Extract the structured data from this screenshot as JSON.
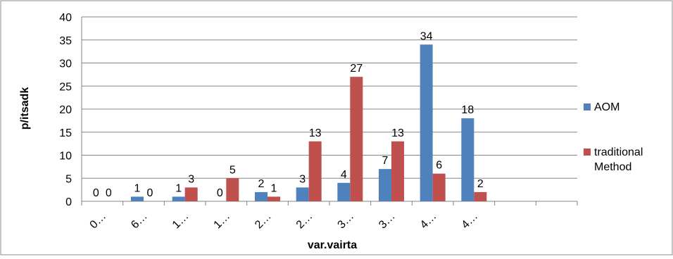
{
  "chart_data": {
    "type": "bar",
    "title": "",
    "xlabel": "var.vairta",
    "ylabel": "p/itsadk",
    "ylim": [
      0,
      40
    ],
    "y_ticks": [
      "0",
      "5",
      "10",
      "15",
      "20",
      "25",
      "30",
      "35",
      "40"
    ],
    "categories": [
      "0…",
      "6…",
      "1…",
      "1…",
      "2…",
      "2…",
      "3…",
      "3…",
      "4…",
      "4…",
      "",
      ""
    ],
    "legend_position": "right",
    "grid": true,
    "series": [
      {
        "name": "AOM",
        "color": "#4f81bd",
        "values": [
          0,
          1,
          1,
          0,
          2,
          3,
          4,
          7,
          34,
          18,
          null,
          null
        ],
        "labels": [
          "0",
          "1",
          "1",
          "0",
          "2",
          "3",
          "4",
          "7",
          "34",
          "18",
          "",
          ""
        ]
      },
      {
        "name": "traditional Method",
        "color": "#c0504d",
        "values": [
          0,
          0,
          3,
          5,
          1,
          13,
          27,
          13,
          6,
          2,
          null,
          null
        ],
        "labels": [
          "0",
          "0",
          "3",
          "5",
          "1",
          "13",
          "27",
          "13",
          "6",
          "2",
          "",
          ""
        ]
      }
    ]
  },
  "legend": {
    "items": [
      {
        "label_lines": [
          "AOM"
        ],
        "color": "#4f81bd"
      },
      {
        "label_lines": [
          "traditional",
          "Method"
        ],
        "color": "#c0504d"
      }
    ]
  }
}
